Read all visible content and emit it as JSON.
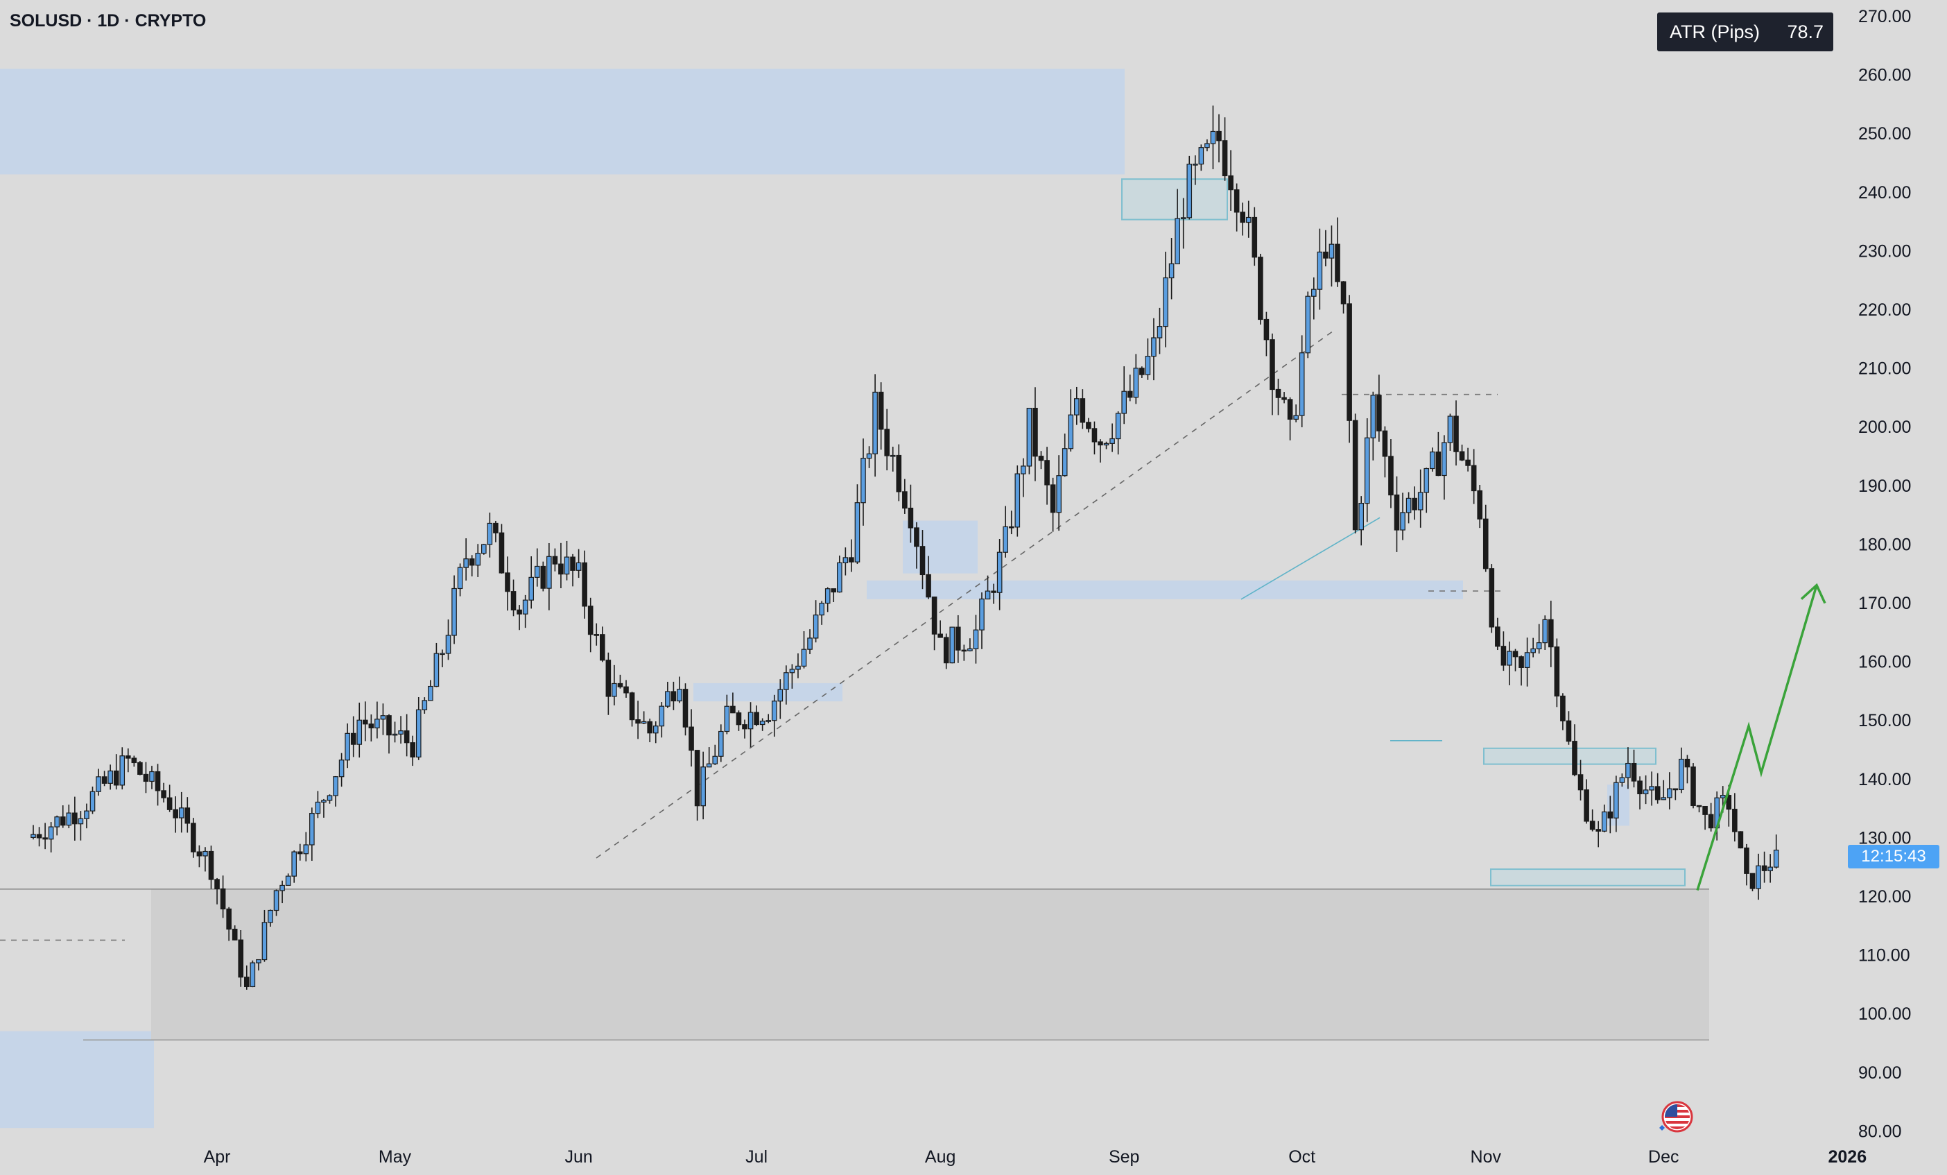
{
  "header": {
    "symbol_title": "SOLUSD · 1D · CRYPTO"
  },
  "indicator": {
    "name": "ATR (Pips)",
    "value": "78.7"
  },
  "countdown": {
    "time": "12:15:43"
  },
  "icons": {
    "flag": "us-flag-icon"
  },
  "colors": {
    "background": "#dbdbdb",
    "candle_up": "#5b9ee0",
    "candle_down": "#1b1b1b",
    "zone_blue": "#c6d5e8",
    "zone_gray": "#cfcfcf",
    "arrow_green": "#3aa33a",
    "badge_blue": "#4da3f5"
  },
  "chart_data": {
    "type": "candlestick",
    "title": "SOLUSD · 1D · CRYPTO",
    "xlabel": "",
    "ylabel": "",
    "ylim": [
      80,
      270
    ],
    "y_ticks": [
      "270.00",
      "260.00",
      "250.00",
      "240.00",
      "230.00",
      "220.00",
      "210.00",
      "200.00",
      "190.00",
      "180.00",
      "170.00",
      "160.00",
      "150.00",
      "140.00",
      "130.00",
      "120.00",
      "110.00",
      "100.00",
      "90.00",
      "80.00"
    ],
    "x_ticks": [
      "Apr",
      "May",
      "Jun",
      "Jul",
      "Aug",
      "Sep",
      "Oct",
      "Nov",
      "Dec",
      "2026"
    ],
    "grid": false,
    "key_prices": [
      {
        "date": "2025-04-07",
        "low": 95.5
      },
      {
        "date": "2025-06-22",
        "low": 126.5
      },
      {
        "date": "2025-07-22",
        "high": 206.5
      },
      {
        "date": "2025-09-18",
        "high": 253.5
      },
      {
        "date": "2025-10-10",
        "low": 170.5
      },
      {
        "date": "2025-10-27",
        "high": 205.5
      },
      {
        "date": "2025-11-12",
        "high": 172.0
      },
      {
        "date": "2025-11-21",
        "low": 121.5
      },
      {
        "date": "2025-12-16",
        "low": 117.0
      },
      {
        "date": "2025-12-20",
        "close": 126.5
      }
    ],
    "zones": [
      {
        "kind": "supply",
        "price_low": 243,
        "price_high": 261
      },
      {
        "kind": "demand",
        "price_low": 96,
        "price_high": 121
      },
      {
        "kind": "support",
        "price_low": 170.5,
        "price_high": 173.5
      },
      {
        "kind": "range",
        "price_low": 121,
        "price_high": 145
      }
    ],
    "projection": {
      "points": [
        121,
        149,
        141,
        173
      ]
    }
  }
}
